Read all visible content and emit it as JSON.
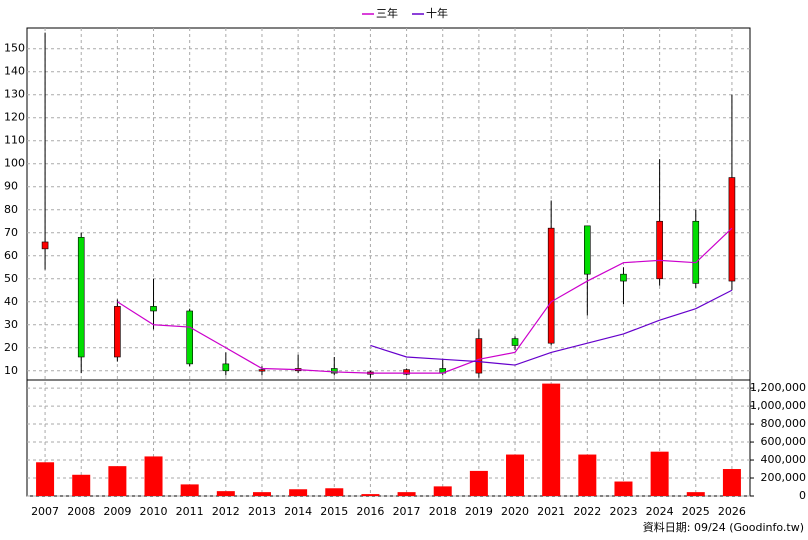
{
  "chart_data": [
    {
      "type": "candlestick",
      "categories": [
        "2007",
        "2008",
        "2009",
        "2010",
        "2011",
        "2012",
        "2013",
        "2014",
        "2015",
        "2016",
        "2017",
        "2018",
        "2019",
        "2020",
        "2021",
        "2022",
        "2023",
        "2024",
        "2025",
        "2026"
      ],
      "open": [
        63,
        68,
        16,
        38,
        36,
        13,
        10,
        10,
        11,
        8.5,
        8.5,
        11,
        9,
        24,
        22,
        73,
        52,
        50,
        75,
        49
      ],
      "high": [
        157,
        70,
        41,
        50,
        37,
        18,
        12,
        17,
        16,
        10,
        11,
        15,
        28,
        25,
        84,
        73,
        55,
        102,
        80,
        130
      ],
      "low": [
        54,
        9,
        14,
        28,
        12,
        8,
        8,
        9,
        8,
        7,
        8,
        8,
        7,
        19,
        21,
        34,
        39,
        47,
        46,
        45
      ],
      "close": [
        66,
        16,
        38,
        36,
        13,
        10,
        10.5,
        11,
        9,
        9.5,
        10.5,
        9,
        24,
        21,
        72,
        52,
        49,
        75,
        48,
        94
      ],
      "up_color": "#ff0000",
      "down_color": "#00dd00",
      "series": [
        {
          "name": "三年",
          "color": "#cc00cc",
          "values": [
            null,
            null,
            40,
            30,
            29,
            20,
            11,
            10.5,
            9.5,
            9,
            9,
            9,
            15,
            18,
            40,
            49,
            57,
            58,
            57,
            72
          ]
        },
        {
          "name": "十年",
          "color": "#6600cc",
          "values": [
            null,
            null,
            null,
            null,
            null,
            null,
            null,
            null,
            null,
            21,
            16,
            15,
            14,
            12.5,
            18,
            22,
            26,
            32,
            37,
            45
          ]
        }
      ],
      "ylim": [
        6,
        159
      ],
      "yticks": [
        10,
        20,
        30,
        40,
        50,
        60,
        70,
        80,
        90,
        100,
        110,
        120,
        130,
        140,
        150
      ],
      "grid": true
    },
    {
      "type": "bar",
      "values": [
        375000,
        236000,
        332000,
        440000,
        129000,
        54000,
        43000,
        75000,
        86000,
        21000,
        43000,
        107000,
        279000,
        461000,
        1250000,
        461000,
        161000,
        493000,
        43000,
        300000
      ],
      "color": "#ff0000",
      "ylim": [
        0,
        1290000
      ],
      "yticks": [
        0,
        {
          "value": 200000,
          "label": "200,000"
        },
        {
          "value": 400000,
          "label": "400,000"
        },
        {
          "value": 600000,
          "label": "600,000"
        },
        {
          "value": 800000,
          "label": "800,000"
        },
        {
          "value": 1000000,
          "label": "1,000,000"
        },
        {
          "value": 1200000,
          "label": "1,200,000"
        }
      ],
      "grid": true,
      "note": "資料日期: 09/24 (Goodinfo.tw)"
    }
  ]
}
